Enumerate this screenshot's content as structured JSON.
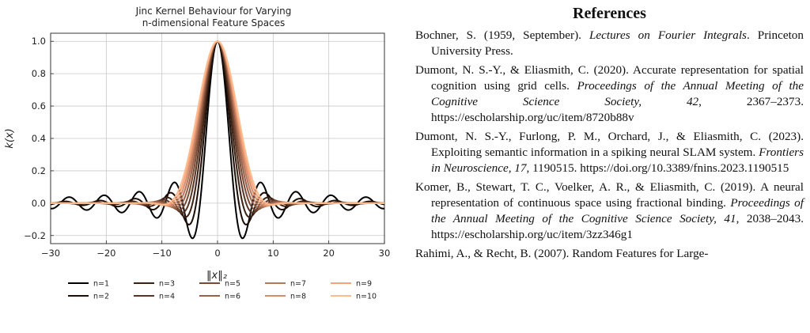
{
  "chart_data": {
    "type": "line",
    "title": [
      "Jinc Kernel Behaviour for Varying",
      "n-dimensional Feature Spaces"
    ],
    "xlabel": "‖x‖₂",
    "ylabel": "k(x)",
    "xlim": [
      -30,
      30
    ],
    "ylim": [
      -0.25,
      1.05
    ],
    "xticks": [
      -30,
      -20,
      -10,
      0,
      10,
      20,
      30
    ],
    "xtick_labels": [
      "−30",
      "−20",
      "−10",
      "0",
      "10",
      "20",
      "30"
    ],
    "yticks": [
      -0.2,
      0.0,
      0.2,
      0.4,
      0.6,
      0.8,
      1.0
    ],
    "ytick_labels": [
      "−0.2",
      "0.0",
      "0.2",
      "0.4",
      "0.6",
      "0.8",
      "1.0"
    ],
    "grid": true,
    "legend_position": "bottom",
    "series": [
      {
        "name": "n=1",
        "n": 1,
        "color": "#000000"
      },
      {
        "name": "n=2",
        "n": 2,
        "color": "#1c0d06"
      },
      {
        "name": "n=3",
        "n": 3,
        "color": "#3a2114"
      },
      {
        "name": "n=4",
        "n": 4,
        "color": "#573424"
      },
      {
        "name": "n=5",
        "n": 5,
        "color": "#784a35"
      },
      {
        "name": "n=6",
        "n": 6,
        "color": "#986047"
      },
      {
        "name": "n=7",
        "n": 7,
        "color": "#b77659"
      },
      {
        "name": "n=8",
        "n": 8,
        "color": "#d68c6a"
      },
      {
        "name": "n=9",
        "n": 9,
        "color": "#f4a37b"
      },
      {
        "name": "n=10",
        "n": 10,
        "color": "#ffbb8c"
      }
    ]
  },
  "references": {
    "heading": "References",
    "items": [
      {
        "pre": "Bochner, S. (1959, September). ",
        "ital": "Lectures on Fourier Integrals",
        "post": ". Princeton University Press."
      },
      {
        "pre": "Dumont, N. S.-Y., & Eliasmith, C. (2020). Accurate representation for spatial cognition using grid cells. ",
        "ital": "Proceedings of the Annual Meeting of the Cognitive Science Society, 42",
        "post": ", 2367–2373. https://escholarship.org/uc/item/8720b88v"
      },
      {
        "pre": "Dumont, N. S.-Y., Furlong, P. M., Orchard, J., & Eliasmith, C. (2023). Exploiting semantic information in a spiking neural SLAM system. ",
        "ital": "Frontiers in Neuroscience, 17",
        "post": ", 1190515. https://doi.org/10.3389/fnins.2023.1190515"
      },
      {
        "pre": "Komer, B., Stewart, T. C., Voelker, A. R., & Eliasmith, C. (2019). A neural representation of continuous space using fractional binding. ",
        "ital": "Proceedings of the Annual Meeting of the Cognitive Science Society, 41",
        "post": ", 2038–2043. https://escholarship.org/uc/item/3zz346g1"
      },
      {
        "pre": "Rahimi, A., & Recht, B. (2007). Random Features for Large-",
        "ital": "",
        "post": ""
      }
    ]
  }
}
